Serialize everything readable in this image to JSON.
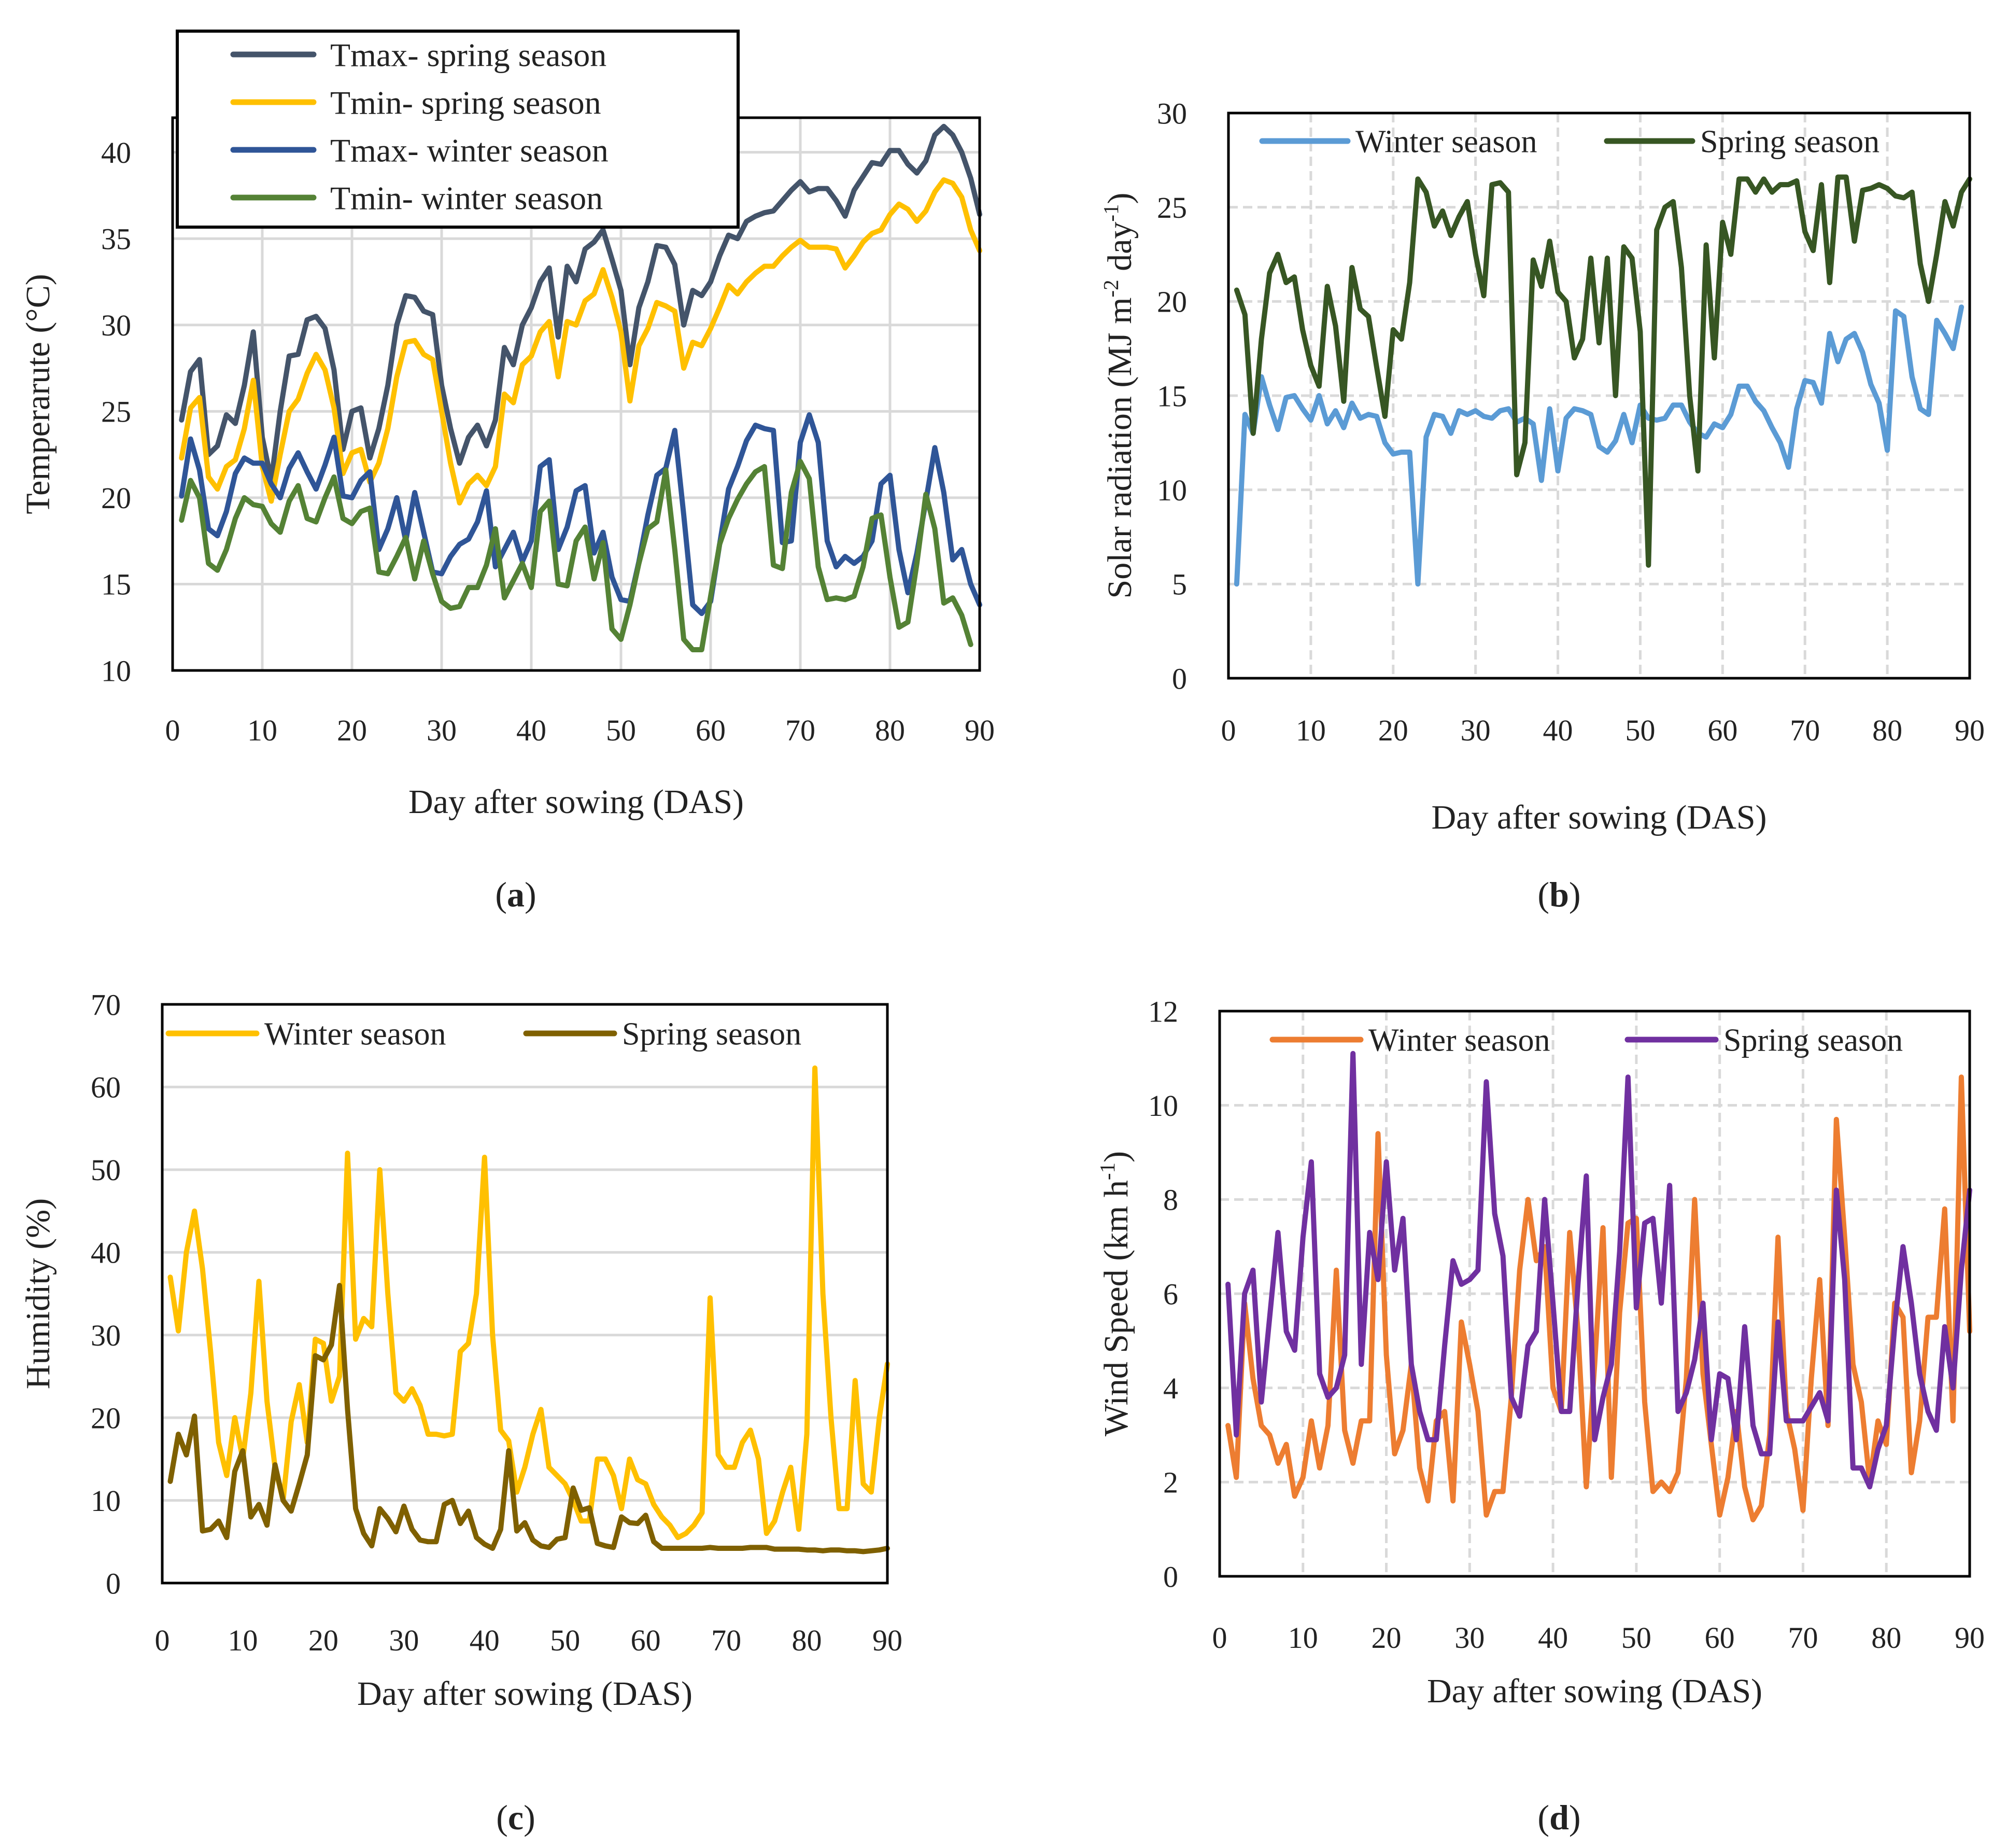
{
  "colors": {
    "tmax_spring": "#44546A",
    "tmin_spring": "#FFC000",
    "tmax_winter": "#2F5597",
    "tmin_winter": "#548235",
    "solar_winter": "#5B9BD5",
    "solar_spring": "#375623",
    "hum_winter": "#FFC000",
    "hum_spring": "#7F6000",
    "wind_winter": "#ED7D31",
    "wind_spring": "#7030A0",
    "grid": "#D9D9D9",
    "axis": "#000000"
  },
  "chart_data": [
    {
      "id": "a",
      "type": "line",
      "caption": {
        "open": "(",
        "letter": "a",
        "close": ")"
      },
      "xlabel": "Day after sowing (DAS)",
      "ylabel": "Temperarute (°C)",
      "xlim": [
        0,
        90
      ],
      "ylim": [
        10,
        42
      ],
      "xticks": [
        0,
        10,
        20,
        30,
        40,
        50,
        60,
        70,
        80,
        90
      ],
      "yticks": [
        10,
        15,
        20,
        25,
        30,
        35,
        40
      ],
      "legend_position": "top-left, boxed",
      "series": [
        {
          "name": "Tmax- spring season",
          "color_key": "tmax_spring",
          "values": [
            24.5,
            27.3,
            28,
            22.5,
            23,
            24.8,
            24.3,
            26.5,
            29.6,
            23.5,
            21,
            25,
            28.2,
            28.3,
            30.3,
            30.5,
            29.8,
            27.4,
            22.8,
            25,
            25.2,
            22.3,
            24,
            26.5,
            30,
            31.7,
            31.6,
            30.8,
            30.6,
            26.5,
            24,
            22,
            23.5,
            24.2,
            23,
            24.5,
            28.7,
            27.7,
            30,
            31,
            32.5,
            33.3,
            29.3,
            33.4,
            32.5,
            34.4,
            34.8,
            35.5,
            33.8,
            32,
            27.7,
            31,
            32.5,
            34.6,
            34.5,
            33.5,
            30,
            32,
            31.7,
            32.5,
            34,
            35.2,
            35,
            36,
            36.3,
            36.5,
            36.6,
            37.2,
            37.8,
            38.3,
            37.7,
            37.9,
            37.9,
            37.2,
            36.3,
            37.8,
            38.6,
            39.4,
            39.3,
            40.1,
            40.1,
            39.3,
            38.8,
            39.5,
            41,
            41.5,
            41,
            40,
            38.5,
            36.4
          ]
        },
        {
          "name": "Tmin- spring season",
          "color_key": "tmin_spring",
          "values": [
            22.3,
            25.2,
            25.8,
            21.2,
            20.5,
            21.8,
            22.2,
            24,
            26.8,
            21.8,
            19.8,
            22.5,
            25,
            25.7,
            27.2,
            28.3,
            27.4,
            25.2,
            21.4,
            22.6,
            22.8,
            20.9,
            22,
            24,
            27,
            29,
            29.1,
            28.3,
            28,
            25,
            22,
            19.7,
            20.8,
            21.3,
            20.7,
            21.8,
            26,
            25.5,
            27.7,
            28.2,
            29.6,
            30.2,
            27,
            30.2,
            30,
            31.4,
            31.8,
            33.2,
            31.6,
            29.6,
            25.6,
            28.8,
            29.8,
            31.3,
            31.1,
            30.8,
            27.5,
            29,
            28.8,
            29.8,
            31,
            32.3,
            31.8,
            32.5,
            33,
            33.4,
            33.4,
            34,
            34.5,
            34.9,
            34.5,
            34.5,
            34.5,
            34.4,
            33.3,
            34,
            34.8,
            35.3,
            35.5,
            36.4,
            37,
            36.7,
            36,
            36.6,
            37.7,
            38.4,
            38.2,
            37.4,
            35.5,
            34.3
          ]
        },
        {
          "name": "Tmax- winter season",
          "color_key": "tmax_winter",
          "values": [
            20.1,
            23.4,
            21.6,
            18.2,
            17.8,
            19.2,
            21.4,
            22.3,
            22,
            22,
            20.8,
            20,
            21.7,
            22.6,
            21.5,
            20.5,
            21.9,
            23.5,
            20.1,
            20,
            21,
            21.5,
            17,
            18.2,
            20,
            17.5,
            20.3,
            18,
            15.7,
            15.6,
            16.6,
            17.3,
            17.6,
            18.6,
            20.4,
            16,
            17,
            18,
            16.3,
            17.5,
            21.8,
            22.2,
            17,
            18.3,
            20.4,
            20.7,
            16.8,
            18,
            15.4,
            14.1,
            14,
            16.3,
            19,
            21.3,
            21.7,
            23.9,
            19,
            13.8,
            13.3,
            14,
            17.3,
            20.5,
            21.8,
            23.3,
            24.2,
            24,
            23.9,
            17.4,
            17.5,
            23.2,
            24.8,
            23.2,
            17.5,
            16,
            16.6,
            16.2,
            16.6,
            17.5,
            20.8,
            21.3,
            17,
            14.5,
            16.8,
            19.8,
            22.9,
            20.3,
            16.4,
            17,
            15,
            13.8
          ]
        },
        {
          "name": "Tmin- winter season",
          "color_key": "tmin_winter",
          "values": [
            18.7,
            21,
            20,
            16.2,
            15.8,
            17,
            18.8,
            20,
            19.6,
            19.5,
            18.5,
            18,
            19.8,
            20.7,
            18.8,
            18.6,
            20,
            21.2,
            18.8,
            18.5,
            19.2,
            19.4,
            15.7,
            15.6,
            16.6,
            17.7,
            15.3,
            17.5,
            15.6,
            14,
            13.6,
            13.7,
            14.8,
            14.8,
            16.1,
            18.2,
            14.2,
            15.2,
            16.2,
            14.8,
            19.2,
            19.8,
            15,
            14.9,
            17.5,
            18.3,
            15.3,
            17.4,
            12.4,
            11.8,
            13.8,
            16.2,
            18.2,
            18.6,
            21.6,
            17,
            11.8,
            11.2,
            11.2,
            14.3,
            17.3,
            18.8,
            19.9,
            20.8,
            21.5,
            21.8,
            16.1,
            15.9,
            20.3,
            22.1,
            21.1,
            16,
            14.1,
            14.2,
            14.1,
            14.3,
            16,
            18.8,
            19,
            15.4,
            12.5,
            12.8,
            16.2,
            20.2,
            18.2,
            13.9,
            14.2,
            13.2,
            11.5
          ]
        }
      ]
    },
    {
      "id": "b",
      "type": "line",
      "caption": {
        "open": "(",
        "letter": "b",
        "close": ")"
      },
      "xlabel": "Day after sowing (DAS)",
      "ylabel": "Solar radiation (MJ m⁻² day⁻¹)",
      "ylabel_parts": {
        "main": "Solar radiation (MJ m",
        "exp1": "-2",
        "mid": " day",
        "exp2": "-1",
        "end": ")"
      },
      "xlim": [
        0,
        90
      ],
      "ylim": [
        0,
        30
      ],
      "xticks": [
        0,
        10,
        20,
        30,
        40,
        50,
        60,
        70,
        80,
        90
      ],
      "yticks": [
        0,
        5,
        10,
        15,
        20,
        25,
        30
      ],
      "legend_position": "top, inside",
      "series": [
        {
          "name": "Winter season",
          "color_key": "solar_winter",
          "values": [
            5,
            14,
            13,
            16,
            14.5,
            13.2,
            14.9,
            15,
            14.3,
            13.7,
            15,
            13.5,
            14.2,
            13.3,
            14.6,
            13.8,
            14,
            13.9,
            12.5,
            11.9,
            12,
            12,
            5,
            12.8,
            14,
            13.9,
            13,
            14.2,
            14,
            14.2,
            13.9,
            13.8,
            14.2,
            14.3,
            13.6,
            13.8,
            13.5,
            10.5,
            14.3,
            11,
            13.8,
            14.3,
            14.2,
            14,
            12.3,
            12,
            12.6,
            14,
            12.5,
            14.5,
            13.8,
            13.7,
            13.8,
            14.5,
            14.5,
            13.6,
            13,
            12.8,
            13.5,
            13.3,
            14,
            15.5,
            15.5,
            14.7,
            14.2,
            13.3,
            12.5,
            11.2,
            14.3,
            15.8,
            15.7,
            14.6,
            18.3,
            16.8,
            18,
            18.3,
            17.3,
            15.6,
            14.6,
            12.1,
            19.5,
            19.2,
            16,
            14.3,
            14,
            19,
            18.3,
            17.5,
            19.7
          ]
        },
        {
          "name": "Spring season",
          "color_key": "solar_spring",
          "values": [
            20.6,
            19.3,
            13,
            18,
            21.5,
            22.5,
            21,
            21.3,
            18.5,
            16.6,
            15.5,
            20.8,
            18.7,
            14.7,
            21.8,
            19.6,
            19.2,
            16.5,
            13.9,
            18.5,
            18,
            21,
            26.5,
            25.8,
            24,
            24.8,
            23.5,
            24.5,
            25.3,
            22.5,
            20.3,
            26.2,
            26.3,
            25.8,
            10.8,
            12.5,
            22.2,
            20.8,
            23.2,
            20.5,
            20,
            17,
            18,
            22.3,
            17.8,
            22.3,
            15,
            22.9,
            22.3,
            18.4,
            6,
            23.8,
            25,
            25.3,
            21.8,
            15,
            11,
            23,
            17,
            24.2,
            22.5,
            26.5,
            26.5,
            25.8,
            26.5,
            25.8,
            26.2,
            26.2,
            26.4,
            23.7,
            22.7,
            26.2,
            21,
            26.6,
            26.6,
            23.2,
            25.9,
            26,
            26.2,
            26,
            25.6,
            25.5,
            25.8,
            22,
            20,
            22.5,
            25.3,
            24,
            25.8,
            26.5
          ]
        }
      ]
    },
    {
      "id": "c",
      "type": "line",
      "caption": {
        "open": "(",
        "letter": "c",
        "close": ")"
      },
      "xlabel": "Day after sowing (DAS)",
      "ylabel": "Humidity (%)",
      "xlim": [
        0,
        90
      ],
      "ylim": [
        0,
        70
      ],
      "xticks": [
        0,
        10,
        20,
        30,
        40,
        50,
        60,
        70,
        80,
        90
      ],
      "yticks": [
        0,
        10,
        20,
        30,
        40,
        50,
        60,
        70
      ],
      "legend_position": "top, inside",
      "series": [
        {
          "name": "Winter season",
          "color_key": "hum_winter",
          "values": [
            37,
            30.5,
            40,
            45,
            38,
            28,
            17,
            13,
            20,
            15,
            23,
            36.5,
            22,
            14,
            10,
            19.5,
            24,
            17,
            29.5,
            29,
            22,
            25,
            52,
            29.5,
            32,
            31,
            50,
            35,
            23,
            22,
            23.5,
            21.5,
            18,
            18,
            17.8,
            18,
            28,
            29,
            35,
            51.5,
            30,
            18.5,
            17.2,
            11,
            14,
            18,
            21,
            14,
            13,
            12,
            10,
            7.5,
            7.5,
            15,
            15,
            13,
            9,
            15,
            12.5,
            12,
            9.5,
            8,
            7,
            5.5,
            6,
            7,
            8.5,
            34.5,
            15.5,
            14,
            14,
            17,
            18.5,
            15,
            6,
            7.5,
            11,
            14,
            6.5,
            18,
            62.3,
            35,
            20,
            9,
            9,
            24.5,
            12,
            11,
            20,
            26.5
          ]
        },
        {
          "name": "Spring season",
          "color_key": "hum_spring",
          "values": [
            12.3,
            18,
            15.5,
            20.2,
            6.3,
            6.5,
            7.5,
            5.5,
            13.5,
            16,
            8,
            9.5,
            7,
            14.3,
            10,
            8.7,
            12,
            15.5,
            27.5,
            27,
            28.8,
            36,
            21,
            9,
            6,
            4.5,
            9,
            7.8,
            6.2,
            9.3,
            6.5,
            5.2,
            5,
            5,
            9.5,
            10,
            7.2,
            8.7,
            5.5,
            4.7,
            4.2,
            6.5,
            16,
            6.3,
            7.3,
            5.2,
            4.5,
            4.3,
            5.3,
            5.5,
            11.5,
            8.8,
            9.1,
            4.8,
            4.5,
            4.3,
            8,
            7.3,
            7.2,
            8.2,
            5,
            4.2,
            4.2,
            4.2,
            4.2,
            4.2,
            4.2,
            4.3,
            4.2,
            4.2,
            4.2,
            4.2,
            4.3,
            4.3,
            4.3,
            4.1,
            4.1,
            4.1,
            4.1,
            4,
            4,
            3.9,
            4,
            4,
            3.9,
            3.9,
            3.8,
            3.9,
            4,
            4.2
          ]
        }
      ]
    },
    {
      "id": "d",
      "type": "line",
      "caption": {
        "open": "(",
        "letter": "d",
        "close": ")"
      },
      "xlabel": "Day after sowing (DAS)",
      "ylabel": "Wind Speed (km h⁻¹)",
      "ylabel_parts": {
        "main": "Wind Speed (km h",
        "exp1": "-1",
        "end": ")"
      },
      "xlim": [
        0,
        90
      ],
      "ylim": [
        0,
        12
      ],
      "xticks": [
        0,
        10,
        20,
        30,
        40,
        50,
        60,
        70,
        80,
        90
      ],
      "yticks": [
        0,
        2,
        4,
        6,
        8,
        10,
        12
      ],
      "legend_position": "top, inside",
      "series": [
        {
          "name": "Winter season",
          "color_key": "wind_winter",
          "values": [
            3.2,
            2.1,
            5.8,
            4.2,
            3.2,
            3,
            2.4,
            2.8,
            1.7,
            2.1,
            3.3,
            2.3,
            3.2,
            6.5,
            3.1,
            2.4,
            3.3,
            3.3,
            9.4,
            4.7,
            2.6,
            3.1,
            4.5,
            2.3,
            1.6,
            3.3,
            3.5,
            1.6,
            5.4,
            4.5,
            3.5,
            1.3,
            1.8,
            1.8,
            3.8,
            6.5,
            8,
            6.7,
            7,
            4,
            3.5,
            7.3,
            5.2,
            1.9,
            4.5,
            7.4,
            2.1,
            5.6,
            7.5,
            7.6,
            3.7,
            1.8,
            2,
            1.8,
            2.2,
            4.2,
            8,
            4.3,
            2.8,
            1.3,
            2.1,
            3.5,
            1.9,
            1.2,
            1.5,
            3,
            7.2,
            3.5,
            2.7,
            1.4,
            4.2,
            6.3,
            3.2,
            9.7,
            7.2,
            4.5,
            3.7,
            2,
            3.3,
            2.8,
            5.8,
            5.5,
            2.2,
            3.3,
            5.5,
            5.5,
            7.8,
            3.3,
            10.6,
            5.2
          ]
        },
        {
          "name": "Spring season",
          "color_key": "wind_spring",
          "values": [
            6.2,
            3,
            6,
            6.5,
            3.7,
            5.5,
            7.3,
            5.2,
            4.8,
            7.2,
            8.8,
            4.3,
            3.8,
            4,
            4.7,
            11.1,
            4.5,
            7.3,
            6.3,
            8.8,
            6.5,
            7.6,
            4.5,
            3.5,
            2.9,
            2.9,
            4.9,
            6.7,
            6.2,
            6.3,
            6.5,
            10.5,
            7.7,
            6.8,
            3.8,
            3.4,
            4.9,
            5.2,
            8,
            5.8,
            3.5,
            3.5,
            6.2,
            8.5,
            2.9,
            3.8,
            4.5,
            6.9,
            10.6,
            5.7,
            7.5,
            7.6,
            5.8,
            8.3,
            3.5,
            3.9,
            4.6,
            5.8,
            2.9,
            4.3,
            4.2,
            2.9,
            5.3,
            3.2,
            2.6,
            2.6,
            5.4,
            3.3,
            3.3,
            3.3,
            3.6,
            3.9,
            3.3,
            8.2,
            6.3,
            2.3,
            2.3,
            1.9,
            2.7,
            3.2,
            5.3,
            7,
            5.8,
            4.3,
            3.5,
            3.1,
            5.3,
            4,
            6.5,
            8.2
          ]
        }
      ]
    }
  ]
}
